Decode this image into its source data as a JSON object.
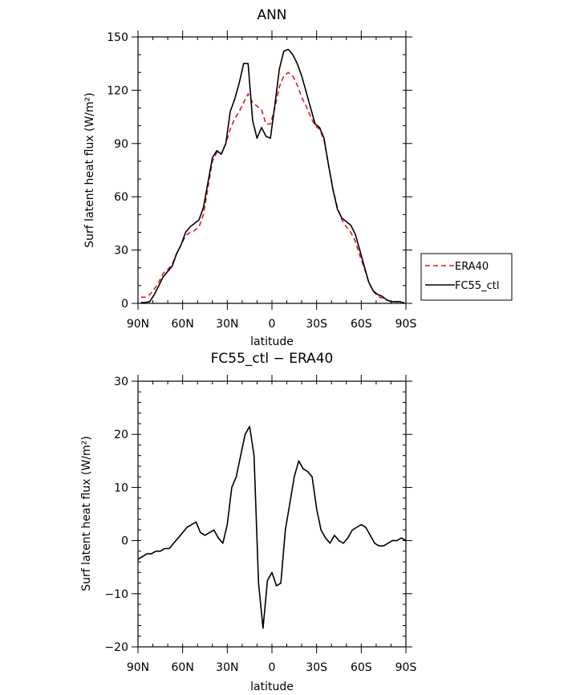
{
  "chart_data": [
    {
      "type": "line",
      "title": "ANN",
      "xlabel": "latitude",
      "ylabel": "Surf latent heat flux (W/m²)",
      "xlim": [
        90,
        -90
      ],
      "ylim": [
        0,
        150
      ],
      "xticks": [
        90,
        60,
        30,
        0,
        -30,
        -60,
        -90
      ],
      "xtick_labels": [
        "90N",
        "60N",
        "30N",
        "0",
        "30S",
        "60S",
        "90S"
      ],
      "yticks": [
        0,
        30,
        60,
        90,
        120,
        150
      ],
      "ytick_labels": [
        "0",
        "30",
        "60",
        "90",
        "120",
        "150"
      ],
      "legend": "outside-right",
      "series": [
        {
          "name": "ERA40",
          "color": "#e8141b",
          "style": "dashed",
          "x": [
            88,
            85,
            82,
            79,
            76,
            73,
            70,
            67,
            64,
            61,
            58,
            55,
            52,
            49,
            46,
            43,
            40,
            37,
            34,
            31,
            28,
            25,
            22,
            19,
            16,
            13,
            10,
            7,
            4,
            1,
            -2,
            -5,
            -8,
            -11,
            -14,
            -17,
            -20,
            -23,
            -26,
            -29,
            -32,
            -35,
            -38,
            -41,
            -44,
            -47,
            -50,
            -53,
            -56,
            -59,
            -62,
            -65,
            -68,
            -71,
            -74,
            -77,
            -80,
            -83,
            -86,
            -89
          ],
          "y": [
            3.5,
            3.5,
            5,
            8,
            12,
            17,
            19,
            22,
            28,
            33,
            38,
            40,
            41,
            43,
            50,
            65,
            80,
            85,
            84,
            90,
            98,
            104,
            108,
            113,
            118,
            113,
            111,
            109,
            101,
            101,
            110,
            122,
            128,
            130,
            128,
            123,
            116,
            111,
            105,
            100,
            98,
            92,
            78,
            64,
            54,
            47,
            43,
            40,
            35,
            27,
            20,
            12,
            7,
            4,
            3,
            2,
            1,
            1,
            0.5,
            0.5
          ]
        },
        {
          "name": "FC55_ctl",
          "color": "#000000",
          "style": "solid",
          "x": [
            88,
            85,
            82,
            79,
            76,
            73,
            70,
            67,
            64,
            61,
            58,
            55,
            52,
            49,
            46,
            43,
            40,
            37,
            34,
            31,
            28,
            25,
            22,
            19,
            16,
            13,
            10,
            7,
            4,
            1,
            -2,
            -5,
            -8,
            -11,
            -14,
            -17,
            -20,
            -23,
            -26,
            -29,
            -32,
            -35,
            -38,
            -41,
            -44,
            -47,
            -50,
            -53,
            -56,
            -59,
            -62,
            -65,
            -68,
            -71,
            -74,
            -77,
            -80,
            -83,
            -86,
            -89
          ],
          "y": [
            0.5,
            0.5,
            1,
            5,
            10,
            15,
            18,
            21,
            28,
            33,
            40,
            43,
            45,
            47,
            54,
            68,
            82,
            86,
            84,
            90,
            108,
            115,
            124,
            135,
            135,
            103,
            93,
            99,
            94,
            93,
            112,
            132,
            142,
            143,
            140,
            135,
            128,
            119,
            110,
            101,
            99,
            93,
            78,
            64,
            53,
            48,
            46,
            44,
            39,
            30,
            21,
            12,
            7,
            5,
            4,
            2,
            1,
            1,
            1,
            0
          ]
        }
      ]
    },
    {
      "type": "line",
      "title": "FC55_ctl − ERA40",
      "xlabel": "latitude",
      "ylabel": "Surf latent heat flux (W/m²)",
      "xlim": [
        90,
        -90
      ],
      "ylim": [
        -20,
        30
      ],
      "xticks": [
        90,
        60,
        30,
        0,
        -30,
        -60,
        -90
      ],
      "xtick_labels": [
        "90N",
        "60N",
        "30N",
        "0",
        "30S",
        "60S",
        "90S"
      ],
      "yticks": [
        -20,
        -10,
        0,
        10,
        20,
        30
      ],
      "ytick_labels": [
        "−20",
        "−10",
        "0",
        "10",
        "20",
        "30"
      ],
      "series": [
        {
          "color": "#000000",
          "style": "solid",
          "x": [
            90,
            87,
            84,
            81,
            78,
            75,
            72,
            69,
            66,
            63,
            60,
            57,
            54,
            51,
            48,
            45,
            42,
            39,
            36,
            33,
            30,
            27,
            24,
            21,
            18,
            15,
            12,
            9,
            6,
            3,
            0,
            -3,
            -6,
            -9,
            -12,
            -15,
            -18,
            -21,
            -24,
            -27,
            -30,
            -33,
            -36,
            -39,
            -42,
            -45,
            -48,
            -51,
            -54,
            -57,
            -60,
            -63,
            -66,
            -69,
            -72,
            -75,
            -78,
            -81,
            -84,
            -87,
            -90
          ],
          "y": [
            -3.5,
            -3,
            -2.5,
            -2.5,
            -2,
            -2,
            -1.5,
            -1.5,
            -0.5,
            0.5,
            1.5,
            2.5,
            3,
            3.5,
            1.5,
            1,
            1.5,
            2,
            0.5,
            -0.5,
            3,
            10,
            12,
            16,
            20,
            21.5,
            16,
            -8,
            -16.5,
            -7.5,
            -6,
            -8.5,
            -8,
            2,
            7,
            12,
            15,
            13.5,
            13,
            12,
            6,
            2,
            0.5,
            -0.5,
            1,
            0,
            -0.5,
            0.5,
            2,
            2.5,
            3,
            2.5,
            1,
            -0.5,
            -1,
            -1,
            -0.5,
            0,
            0,
            0.5,
            0
          ]
        }
      ]
    }
  ]
}
